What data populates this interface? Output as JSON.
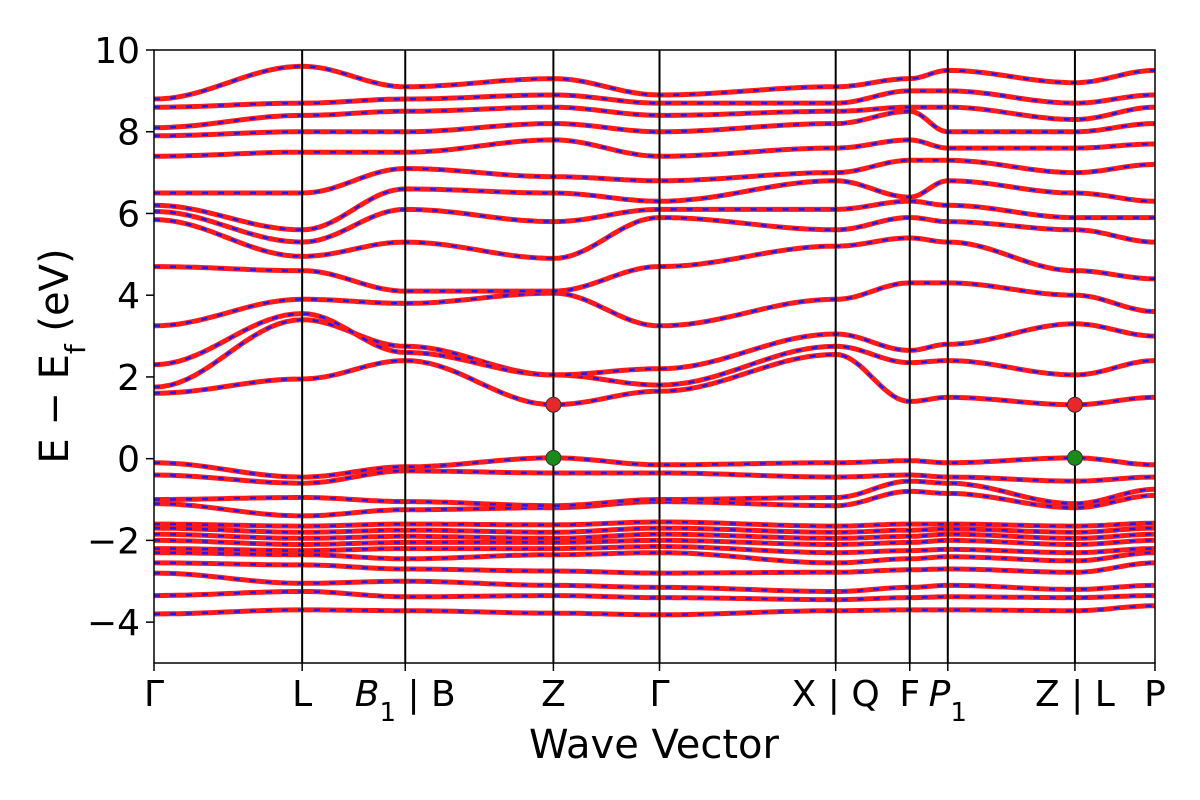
{
  "chart_data": {
    "type": "line",
    "title": "",
    "xlabel": "Wave Vector",
    "ylabel": {
      "main": "E − E",
      "sub": "f",
      "unit": " (eV)"
    },
    "ylim": [
      -5,
      10
    ],
    "yticks": [
      {
        "v": 10,
        "label": "10"
      },
      {
        "v": 8,
        "label": "8"
      },
      {
        "v": 6,
        "label": "6"
      },
      {
        "v": 4,
        "label": "4"
      },
      {
        "v": 2,
        "label": "2"
      },
      {
        "v": 0,
        "label": "0"
      },
      {
        "v": -2,
        "label": "−2"
      },
      {
        "v": -4,
        "label": "−4"
      }
    ],
    "xlim": [
      0,
      1
    ],
    "kpoints": [
      {
        "x": 0.0,
        "label": "Γ"
      },
      {
        "x": 0.148,
        "label": "L"
      },
      {
        "x": 0.251,
        "label": "B",
        "sub": "1",
        "suffix": " | B"
      },
      {
        "x": 0.399,
        "label": "Z"
      },
      {
        "x": 0.505,
        "label": "Γ"
      },
      {
        "x": 0.681,
        "label": "X | Q"
      },
      {
        "x": 0.755,
        "label": "F"
      },
      {
        "x": 0.793,
        "label": "P",
        "sub": "1"
      },
      {
        "x": 0.92,
        "label": "Z | L"
      },
      {
        "x": 1.0,
        "label": "P"
      }
    ],
    "special_points": [
      {
        "name": "cbm",
        "x": 0.399,
        "y": 1.32,
        "color": "#e8262b"
      },
      {
        "name": "cbm",
        "x": 0.92,
        "y": 1.32,
        "color": "#e8262b"
      },
      {
        "name": "vbm",
        "x": 0.399,
        "y": 0.02,
        "color": "#1a8a1a"
      },
      {
        "name": "vbm",
        "x": 0.92,
        "y": 0.02,
        "color": "#1a8a1a"
      }
    ],
    "series": [
      {
        "values": [
          [
            0,
            -3.8
          ],
          [
            0.148,
            -3.7
          ],
          [
            0.251,
            -3.72
          ],
          [
            0.399,
            -3.78
          ],
          [
            0.505,
            -3.82
          ],
          [
            0.681,
            -3.72
          ],
          [
            0.755,
            -3.7
          ],
          [
            0.793,
            -3.7
          ],
          [
            0.92,
            -3.72
          ],
          [
            1,
            -3.6
          ]
        ]
      },
      {
        "values": [
          [
            0,
            -3.35
          ],
          [
            0.148,
            -3.25
          ],
          [
            0.251,
            -3.38
          ],
          [
            0.399,
            -3.35
          ],
          [
            0.505,
            -3.4
          ],
          [
            0.681,
            -3.45
          ],
          [
            0.755,
            -3.4
          ],
          [
            0.793,
            -3.38
          ],
          [
            0.92,
            -3.4
          ],
          [
            1,
            -3.35
          ]
        ]
      },
      {
        "values": [
          [
            0,
            -2.8
          ],
          [
            0.148,
            -3.05
          ],
          [
            0.251,
            -3.0
          ],
          [
            0.399,
            -3.1
          ],
          [
            0.505,
            -3.15
          ],
          [
            0.681,
            -3.25
          ],
          [
            0.755,
            -3.15
          ],
          [
            0.793,
            -3.1
          ],
          [
            0.92,
            -3.2
          ],
          [
            1,
            -3.1
          ]
        ]
      },
      {
        "values": [
          [
            0,
            -2.55
          ],
          [
            0.148,
            -2.6
          ],
          [
            0.251,
            -2.7
          ],
          [
            0.399,
            -2.75
          ],
          [
            0.505,
            -2.8
          ],
          [
            0.681,
            -2.78
          ],
          [
            0.755,
            -2.72
          ],
          [
            0.793,
            -2.7
          ],
          [
            0.92,
            -2.78
          ],
          [
            1,
            -2.55
          ]
        ]
      },
      {
        "values": [
          [
            0,
            -2.3
          ],
          [
            0.148,
            -2.35
          ],
          [
            0.251,
            -2.45
          ],
          [
            0.399,
            -2.35
          ],
          [
            0.505,
            -2.3
          ],
          [
            0.681,
            -2.55
          ],
          [
            0.755,
            -2.45
          ],
          [
            0.793,
            -2.4
          ],
          [
            0.92,
            -2.5
          ],
          [
            1,
            -2.3
          ]
        ]
      },
      {
        "values": [
          [
            0,
            -2.2
          ],
          [
            0.148,
            -2.25
          ],
          [
            0.251,
            -2.2
          ],
          [
            0.399,
            -2.2
          ],
          [
            0.505,
            -2.15
          ],
          [
            0.681,
            -2.3
          ],
          [
            0.755,
            -2.25
          ],
          [
            0.793,
            -2.22
          ],
          [
            0.92,
            -2.3
          ],
          [
            1,
            -2.2
          ]
        ]
      },
      {
        "values": [
          [
            0,
            -2.0
          ],
          [
            0.148,
            -2.1
          ],
          [
            0.251,
            -2.05
          ],
          [
            0.399,
            -2.05
          ],
          [
            0.505,
            -2.0
          ],
          [
            0.681,
            -2.1
          ],
          [
            0.755,
            -2.05
          ],
          [
            0.793,
            -2.0
          ],
          [
            0.92,
            -2.1
          ],
          [
            1,
            -2.0
          ]
        ]
      },
      {
        "values": [
          [
            0,
            -1.85
          ],
          [
            0.148,
            -1.95
          ],
          [
            0.251,
            -1.9
          ],
          [
            0.399,
            -1.95
          ],
          [
            0.505,
            -1.85
          ],
          [
            0.681,
            -1.95
          ],
          [
            0.755,
            -1.9
          ],
          [
            0.793,
            -1.85
          ],
          [
            0.92,
            -1.95
          ],
          [
            1,
            -1.85
          ]
        ]
      },
      {
        "values": [
          [
            0,
            -1.7
          ],
          [
            0.148,
            -1.8
          ],
          [
            0.251,
            -1.75
          ],
          [
            0.399,
            -1.8
          ],
          [
            0.505,
            -1.7
          ],
          [
            0.681,
            -1.8
          ],
          [
            0.755,
            -1.75
          ],
          [
            0.793,
            -1.72
          ],
          [
            0.92,
            -1.8
          ],
          [
            1,
            -1.7
          ]
        ]
      },
      {
        "values": [
          [
            0,
            -1.6
          ],
          [
            0.148,
            -1.65
          ],
          [
            0.251,
            -1.6
          ],
          [
            0.399,
            -1.62
          ],
          [
            0.505,
            -1.55
          ],
          [
            0.681,
            -1.65
          ],
          [
            0.755,
            -1.6
          ],
          [
            0.793,
            -1.6
          ],
          [
            0.92,
            -1.65
          ],
          [
            1,
            -1.58
          ]
        ]
      },
      {
        "values": [
          [
            0,
            -1.1
          ],
          [
            0.148,
            -1.4
          ],
          [
            0.251,
            -1.25
          ],
          [
            0.399,
            -1.2
          ],
          [
            0.505,
            -1.05
          ],
          [
            0.681,
            -1.15
          ],
          [
            0.755,
            -0.8
          ],
          [
            0.793,
            -0.85
          ],
          [
            0.92,
            -1.2
          ],
          [
            1,
            -0.9
          ]
        ]
      },
      {
        "values": [
          [
            0,
            -1.0
          ],
          [
            0.148,
            -0.95
          ],
          [
            0.251,
            -1.05
          ],
          [
            0.399,
            -1.15
          ],
          [
            0.505,
            -1.0
          ],
          [
            0.681,
            -0.95
          ],
          [
            0.755,
            -0.55
          ],
          [
            0.793,
            -0.6
          ],
          [
            0.92,
            -1.1
          ],
          [
            1,
            -0.75
          ]
        ]
      },
      {
        "values": [
          [
            0,
            -0.4
          ],
          [
            0.148,
            -0.6
          ],
          [
            0.251,
            -0.3
          ],
          [
            0.399,
            -0.35
          ],
          [
            0.505,
            -0.35
          ],
          [
            0.681,
            -0.45
          ],
          [
            0.755,
            -0.4
          ],
          [
            0.793,
            -0.45
          ],
          [
            0.92,
            -0.55
          ],
          [
            1,
            -0.45
          ]
        ]
      },
      {
        "values": [
          [
            0,
            -0.1
          ],
          [
            0.148,
            -0.45
          ],
          [
            0.251,
            -0.2
          ],
          [
            0.399,
            0.02
          ],
          [
            0.505,
            -0.15
          ],
          [
            0.681,
            -0.1
          ],
          [
            0.755,
            -0.05
          ],
          [
            0.793,
            -0.1
          ],
          [
            0.92,
            0.02
          ],
          [
            1,
            -0.15
          ]
        ]
      },
      {
        "values": [
          [
            0,
            1.6
          ],
          [
            0.148,
            1.95
          ],
          [
            0.251,
            2.4
          ],
          [
            0.399,
            1.32
          ],
          [
            0.505,
            1.65
          ],
          [
            0.681,
            2.55
          ],
          [
            0.755,
            1.4
          ],
          [
            0.793,
            1.5
          ],
          [
            0.92,
            1.32
          ],
          [
            1,
            1.5
          ]
        ]
      },
      {
        "values": [
          [
            0,
            1.75
          ],
          [
            0.148,
            3.4
          ],
          [
            0.251,
            2.75
          ],
          [
            0.399,
            2.05
          ],
          [
            0.505,
            1.8
          ],
          [
            0.681,
            2.75
          ],
          [
            0.755,
            2.35
          ],
          [
            0.793,
            2.4
          ],
          [
            0.92,
            2.05
          ],
          [
            1,
            2.4
          ]
        ]
      },
      {
        "values": [
          [
            0,
            2.3
          ],
          [
            0.148,
            3.55
          ],
          [
            0.251,
            2.6
          ],
          [
            0.399,
            2.05
          ],
          [
            0.505,
            2.2
          ],
          [
            0.681,
            3.05
          ],
          [
            0.755,
            2.65
          ],
          [
            0.793,
            2.8
          ],
          [
            0.92,
            3.3
          ],
          [
            1,
            3.0
          ]
        ]
      },
      {
        "values": [
          [
            0,
            3.25
          ],
          [
            0.148,
            3.9
          ],
          [
            0.251,
            3.8
          ],
          [
            0.399,
            4.05
          ],
          [
            0.505,
            3.25
          ],
          [
            0.681,
            3.9
          ],
          [
            0.755,
            4.3
          ],
          [
            0.793,
            4.3
          ],
          [
            0.92,
            4.0
          ],
          [
            1,
            3.6
          ]
        ]
      },
      {
        "values": [
          [
            0,
            4.7
          ],
          [
            0.148,
            4.6
          ],
          [
            0.251,
            4.1
          ],
          [
            0.399,
            4.1
          ],
          [
            0.505,
            4.7
          ],
          [
            0.681,
            5.2
          ],
          [
            0.755,
            5.4
          ],
          [
            0.793,
            5.3
          ],
          [
            0.92,
            4.6
          ],
          [
            1,
            4.4
          ]
        ]
      },
      {
        "values": [
          [
            0,
            5.85
          ],
          [
            0.148,
            4.95
          ],
          [
            0.251,
            5.3
          ],
          [
            0.399,
            4.9
          ],
          [
            0.505,
            5.9
          ],
          [
            0.681,
            5.6
          ],
          [
            0.755,
            5.9
          ],
          [
            0.793,
            5.8
          ],
          [
            0.92,
            5.6
          ],
          [
            1,
            5.3
          ]
        ]
      },
      {
        "values": [
          [
            0,
            6.05
          ],
          [
            0.148,
            5.3
          ],
          [
            0.251,
            6.1
          ],
          [
            0.399,
            5.8
          ],
          [
            0.505,
            6.1
          ],
          [
            0.681,
            6.1
          ],
          [
            0.755,
            6.3
          ],
          [
            0.793,
            6.2
          ],
          [
            0.92,
            5.9
          ],
          [
            1,
            5.9
          ]
        ]
      },
      {
        "values": [
          [
            0,
            6.2
          ],
          [
            0.148,
            5.6
          ],
          [
            0.251,
            6.6
          ],
          [
            0.399,
            6.5
          ],
          [
            0.505,
            6.3
          ],
          [
            0.681,
            6.8
          ],
          [
            0.755,
            6.4
          ],
          [
            0.793,
            6.8
          ],
          [
            0.92,
            6.5
          ],
          [
            1,
            6.3
          ]
        ]
      },
      {
        "values": [
          [
            0,
            6.5
          ],
          [
            0.148,
            6.5
          ],
          [
            0.251,
            7.1
          ],
          [
            0.399,
            6.9
          ],
          [
            0.505,
            6.8
          ],
          [
            0.681,
            7.0
          ],
          [
            0.755,
            7.3
          ],
          [
            0.793,
            7.3
          ],
          [
            0.92,
            7.0
          ],
          [
            1,
            7.2
          ]
        ]
      },
      {
        "values": [
          [
            0,
            7.4
          ],
          [
            0.148,
            7.5
          ],
          [
            0.251,
            7.5
          ],
          [
            0.399,
            7.8
          ],
          [
            0.505,
            7.4
          ],
          [
            0.681,
            7.6
          ],
          [
            0.755,
            7.8
          ],
          [
            0.793,
            7.6
          ],
          [
            0.92,
            7.6
          ],
          [
            1,
            7.7
          ]
        ]
      },
      {
        "values": [
          [
            0,
            7.9
          ],
          [
            0.148,
            8.0
          ],
          [
            0.251,
            8.0
          ],
          [
            0.399,
            8.2
          ],
          [
            0.505,
            8.0
          ],
          [
            0.681,
            8.2
          ],
          [
            0.755,
            8.5
          ],
          [
            0.793,
            8.0
          ],
          [
            0.92,
            8.0
          ],
          [
            1,
            8.2
          ]
        ]
      },
      {
        "values": [
          [
            0,
            8.1
          ],
          [
            0.148,
            8.4
          ],
          [
            0.251,
            8.5
          ],
          [
            0.399,
            8.6
          ],
          [
            0.505,
            8.4
          ],
          [
            0.681,
            8.5
          ],
          [
            0.755,
            8.6
          ],
          [
            0.793,
            8.6
          ],
          [
            0.92,
            8.3
          ],
          [
            1,
            8.6
          ]
        ]
      },
      {
        "values": [
          [
            0,
            8.6
          ],
          [
            0.148,
            8.7
          ],
          [
            0.251,
            8.8
          ],
          [
            0.399,
            8.9
          ],
          [
            0.505,
            8.7
          ],
          [
            0.681,
            8.7
          ],
          [
            0.755,
            9.0
          ],
          [
            0.793,
            9.0
          ],
          [
            0.92,
            8.7
          ],
          [
            1,
            8.9
          ]
        ]
      },
      {
        "values": [
          [
            0,
            8.8
          ],
          [
            0.148,
            9.6
          ],
          [
            0.251,
            9.1
          ],
          [
            0.399,
            9.3
          ],
          [
            0.505,
            8.9
          ],
          [
            0.681,
            9.1
          ],
          [
            0.755,
            9.3
          ],
          [
            0.793,
            9.5
          ],
          [
            0.92,
            9.2
          ],
          [
            1,
            9.5
          ]
        ]
      }
    ]
  }
}
